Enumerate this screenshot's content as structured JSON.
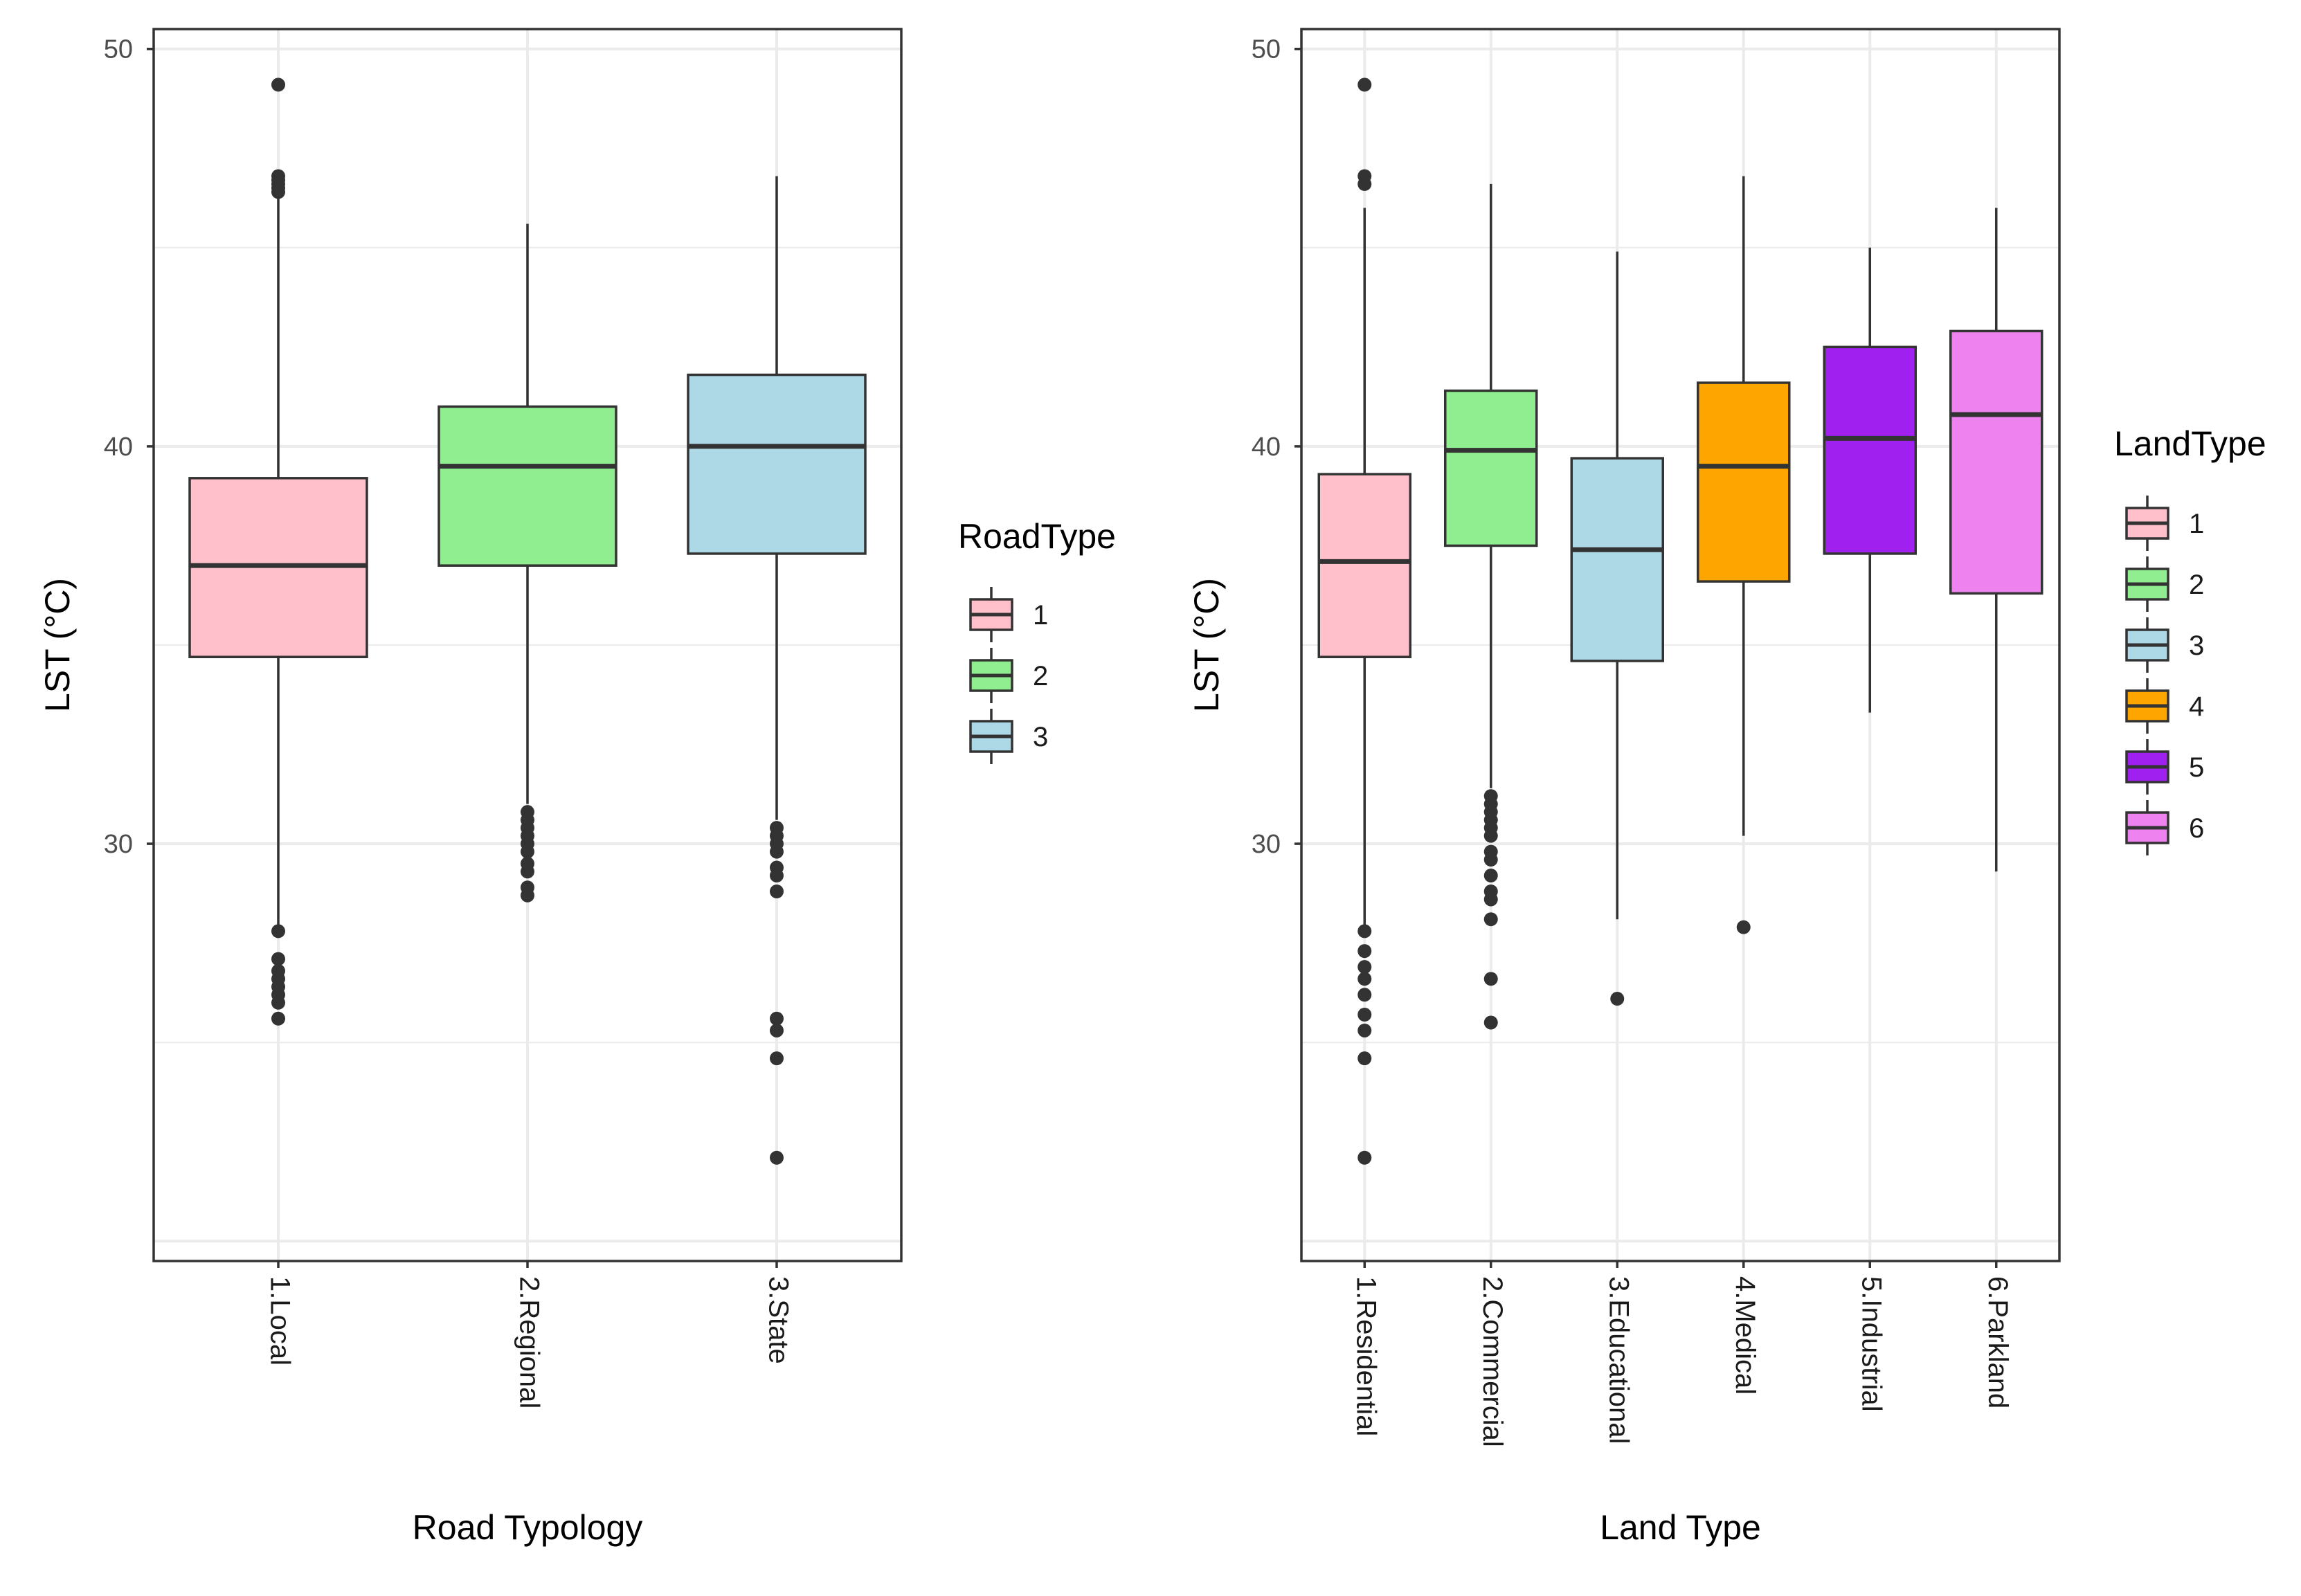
{
  "chart_data": [
    {
      "type": "boxplot",
      "id": "road",
      "xlabel": "Road Typology",
      "ylabel": "LST (°C)",
      "ylim": [
        19.5,
        50.5
      ],
      "yticks": [
        30,
        40,
        50
      ],
      "grid": true,
      "legend": {
        "title": "RoadType",
        "placement": "right",
        "labels": [
          "1",
          "2",
          "3"
        ]
      },
      "categories": [
        "1.Local",
        "2.Regional",
        "3.State"
      ],
      "colors": [
        "#FFC0CB",
        "#90EE90",
        "#ADD8E6"
      ],
      "boxes": [
        {
          "q1": 34.7,
          "median": 37.0,
          "q3": 39.2,
          "whisker_low": 27.9,
          "whisker_high": 46.3,
          "outliers": [
            49.1,
            46.8,
            46.7,
            46.6,
            46.5,
            46.4,
            27.8,
            27.1,
            26.8,
            26.6,
            26.4,
            26.2,
            26.0,
            25.6
          ]
        },
        {
          "q1": 37.0,
          "median": 39.5,
          "q3": 41.0,
          "whisker_low": 31.0,
          "whisker_high": 45.6,
          "outliers": [
            30.8,
            30.6,
            30.4,
            30.2,
            30.0,
            29.8,
            29.5,
            29.3,
            28.9,
            28.7
          ]
        },
        {
          "q1": 37.3,
          "median": 40.0,
          "q3": 41.8,
          "whisker_low": 30.6,
          "whisker_high": 46.8,
          "outliers": [
            30.4,
            30.2,
            30.0,
            29.8,
            29.4,
            29.2,
            28.8,
            25.6,
            25.3,
            24.6,
            22.1
          ]
        }
      ]
    },
    {
      "type": "boxplot",
      "id": "land",
      "xlabel": "Land Type",
      "ylabel": "LST (°C)",
      "ylim": [
        19.5,
        50.5
      ],
      "yticks": [
        30,
        40,
        50
      ],
      "grid": true,
      "legend": {
        "title": "LandType",
        "placement": "right",
        "labels": [
          "1",
          "2",
          "3",
          "4",
          "5",
          "6"
        ]
      },
      "categories": [
        "1.Residential",
        "2.Commercial",
        "3.Educational",
        "4.Medical",
        "5.Industrial",
        "6.Parkland"
      ],
      "colors": [
        "#FFC0CB",
        "#90EE90",
        "#ADD8E6",
        "#FFA500",
        "#A020F0",
        "#EE82EE"
      ],
      "boxes": [
        {
          "q1": 34.7,
          "median": 37.1,
          "q3": 39.3,
          "whisker_low": 27.9,
          "whisker_high": 46.0,
          "outliers": [
            49.1,
            46.8,
            46.6,
            27.8,
            27.3,
            26.9,
            26.6,
            26.2,
            25.7,
            25.3,
            24.6,
            22.1
          ]
        },
        {
          "q1": 37.5,
          "median": 39.9,
          "q3": 41.4,
          "whisker_low": 31.4,
          "whisker_high": 46.6,
          "outliers": [
            31.2,
            31.0,
            30.8,
            30.6,
            30.4,
            30.2,
            29.8,
            29.6,
            29.2,
            28.8,
            28.6,
            28.1,
            26.6,
            25.5
          ]
        },
        {
          "q1": 34.6,
          "median": 37.4,
          "q3": 39.7,
          "whisker_low": 28.1,
          "whisker_high": 44.9,
          "outliers": [
            26.1
          ]
        },
        {
          "q1": 36.6,
          "median": 39.5,
          "q3": 41.6,
          "whisker_low": 30.2,
          "whisker_high": 46.8,
          "outliers": [
            27.9
          ]
        },
        {
          "q1": 37.3,
          "median": 40.2,
          "q3": 42.5,
          "whisker_low": 33.3,
          "whisker_high": 45.0,
          "outliers": []
        },
        {
          "q1": 36.3,
          "median": 40.8,
          "q3": 42.9,
          "whisker_low": 29.3,
          "whisker_high": 46.0,
          "outliers": []
        }
      ]
    }
  ]
}
